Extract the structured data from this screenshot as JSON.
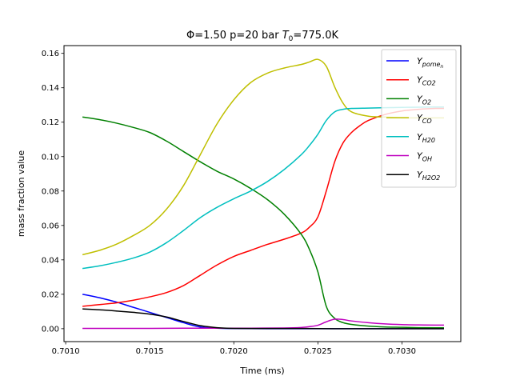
{
  "chart_data": {
    "type": "line",
    "title": {
      "prefix": "Φ=1.50 p=20 bar ",
      "t_symbol": "T",
      "t_subscript": "0",
      "suffix": "=775.0K"
    },
    "xlabel": "Time (ms)",
    "ylabel": "mass fraction value",
    "xlim": [
      0.70099,
      0.70335
    ],
    "ylim": [
      -0.0075,
      0.1645
    ],
    "x_ticks": [
      0.701,
      0.7015,
      0.702,
      0.7025,
      0.703
    ],
    "x_tick_labels": [
      "0.7010",
      "0.7015",
      "0.7020",
      "0.7025",
      "0.7030"
    ],
    "y_ticks": [
      0.0,
      0.02,
      0.04,
      0.06,
      0.08,
      0.1,
      0.12,
      0.14,
      0.16
    ],
    "y_tick_labels": [
      "0.00",
      "0.02",
      "0.04",
      "0.06",
      "0.08",
      "0.10",
      "0.12",
      "0.14",
      "0.16"
    ],
    "grid": false,
    "legend_position": "top-right",
    "series": [
      {
        "name": "Y_pome_n",
        "legend_main": "Y",
        "legend_sub": "pome",
        "legend_subsub": "n",
        "color": "#0000ff",
        "x": [
          0.7011,
          0.7012,
          0.7013,
          0.7014,
          0.7015,
          0.7016,
          0.7017,
          0.7018,
          0.7019,
          0.702,
          0.7022,
          0.7025,
          0.7028,
          0.70325
        ],
        "y": [
          0.02,
          0.018,
          0.0155,
          0.0125,
          0.0095,
          0.0065,
          0.0035,
          0.001,
          0.0003,
          0.0001,
          0.0,
          0.0,
          0.0,
          0.0
        ]
      },
      {
        "name": "Y_CO2",
        "legend_main": "Y",
        "legend_sub": "CO2",
        "color": "#ff0000",
        "x": [
          0.7011,
          0.7012,
          0.7013,
          0.7014,
          0.7015,
          0.7016,
          0.7017,
          0.7018,
          0.7019,
          0.702,
          0.7021,
          0.7022,
          0.7023,
          0.7024,
          0.70245,
          0.7025,
          0.70255,
          0.7026,
          0.70265,
          0.7027,
          0.70275,
          0.7028,
          0.7029,
          0.703,
          0.7031,
          0.7032,
          0.70325
        ],
        "y": [
          0.013,
          0.014,
          0.015,
          0.0165,
          0.0185,
          0.021,
          0.025,
          0.031,
          0.037,
          0.042,
          0.0455,
          0.049,
          0.052,
          0.0555,
          0.059,
          0.065,
          0.08,
          0.097,
          0.108,
          0.114,
          0.118,
          0.121,
          0.1245,
          0.1265,
          0.1275,
          0.128,
          0.128
        ]
      },
      {
        "name": "Y_O2",
        "legend_main": "Y",
        "legend_sub": "O2",
        "color": "#008000",
        "x": [
          0.7011,
          0.7012,
          0.7013,
          0.7014,
          0.7015,
          0.7016,
          0.7017,
          0.7018,
          0.7019,
          0.702,
          0.7021,
          0.7022,
          0.7023,
          0.7024,
          0.70245,
          0.7025,
          0.70255,
          0.7026,
          0.70265,
          0.7027,
          0.7028,
          0.7029,
          0.703,
          0.7031,
          0.7032,
          0.70325
        ],
        "y": [
          0.123,
          0.1215,
          0.1195,
          0.117,
          0.114,
          0.109,
          0.103,
          0.097,
          0.0915,
          0.087,
          0.0815,
          0.075,
          0.0665,
          0.055,
          0.046,
          0.033,
          0.013,
          0.006,
          0.0035,
          0.0025,
          0.0015,
          0.001,
          0.0008,
          0.0006,
          0.0005,
          0.0005
        ]
      },
      {
        "name": "Y_CO",
        "legend_main": "Y",
        "legend_sub": "CO",
        "color": "#bfbf00",
        "x": [
          0.7011,
          0.7012,
          0.7013,
          0.7014,
          0.7015,
          0.7016,
          0.7017,
          0.7018,
          0.7019,
          0.702,
          0.7021,
          0.7022,
          0.7023,
          0.7024,
          0.70245,
          0.7025,
          0.70255,
          0.7026,
          0.70265,
          0.7027,
          0.7028,
          0.7029,
          0.703,
          0.7031,
          0.7032,
          0.70325
        ],
        "y": [
          0.043,
          0.0455,
          0.049,
          0.054,
          0.06,
          0.0695,
          0.083,
          0.101,
          0.119,
          0.133,
          0.143,
          0.1485,
          0.1515,
          0.1535,
          0.155,
          0.1565,
          0.1525,
          0.1405,
          0.131,
          0.126,
          0.1235,
          0.123,
          0.1225,
          0.1225,
          0.1225,
          0.1225
        ]
      },
      {
        "name": "Y_H20",
        "legend_main": "Y",
        "legend_sub": "H20",
        "color": "#00bfbf",
        "x": [
          0.7011,
          0.7012,
          0.7013,
          0.7014,
          0.7015,
          0.7016,
          0.7017,
          0.7018,
          0.7019,
          0.702,
          0.7021,
          0.7022,
          0.7023,
          0.7024,
          0.70245,
          0.7025,
          0.70255,
          0.7026,
          0.70265,
          0.7027,
          0.7028,
          0.7029,
          0.703,
          0.7031,
          0.7032,
          0.70325
        ],
        "y": [
          0.035,
          0.0365,
          0.0385,
          0.041,
          0.0445,
          0.05,
          0.057,
          0.0645,
          0.0705,
          0.0755,
          0.08,
          0.0855,
          0.0925,
          0.101,
          0.1065,
          0.113,
          0.121,
          0.126,
          0.1275,
          0.128,
          0.1282,
          0.1284,
          0.1286,
          0.1287,
          0.1288,
          0.1288
        ]
      },
      {
        "name": "Y_OH",
        "legend_main": "Y",
        "legend_sub": "OH",
        "color": "#bf00bf",
        "x": [
          0.7011,
          0.7013,
          0.7015,
          0.7017,
          0.7019,
          0.7021,
          0.7023,
          0.7024,
          0.70245,
          0.7025,
          0.70255,
          0.7026,
          0.70265,
          0.7027,
          0.7028,
          0.7029,
          0.703,
          0.7031,
          0.7032,
          0.70325
        ],
        "y": [
          0.0002,
          0.0002,
          0.0002,
          0.0003,
          0.0003,
          0.0003,
          0.0004,
          0.0007,
          0.0012,
          0.002,
          0.004,
          0.0055,
          0.0053,
          0.0045,
          0.0035,
          0.0028,
          0.0024,
          0.0022,
          0.0021,
          0.0021
        ]
      },
      {
        "name": "Y_H2O2",
        "legend_main": "Y",
        "legend_sub": "H2O2",
        "color": "#000000",
        "x": [
          0.7011,
          0.7012,
          0.7013,
          0.7014,
          0.7015,
          0.7016,
          0.7017,
          0.7018,
          0.7019,
          0.702,
          0.7022,
          0.7024,
          0.7026,
          0.7028,
          0.703,
          0.70325
        ],
        "y": [
          0.0115,
          0.011,
          0.0103,
          0.0095,
          0.0085,
          0.0068,
          0.0042,
          0.0018,
          0.0006,
          0.0002,
          0.0001,
          0.0001,
          0.0,
          0.0,
          0.0,
          0.0
        ]
      }
    ]
  }
}
